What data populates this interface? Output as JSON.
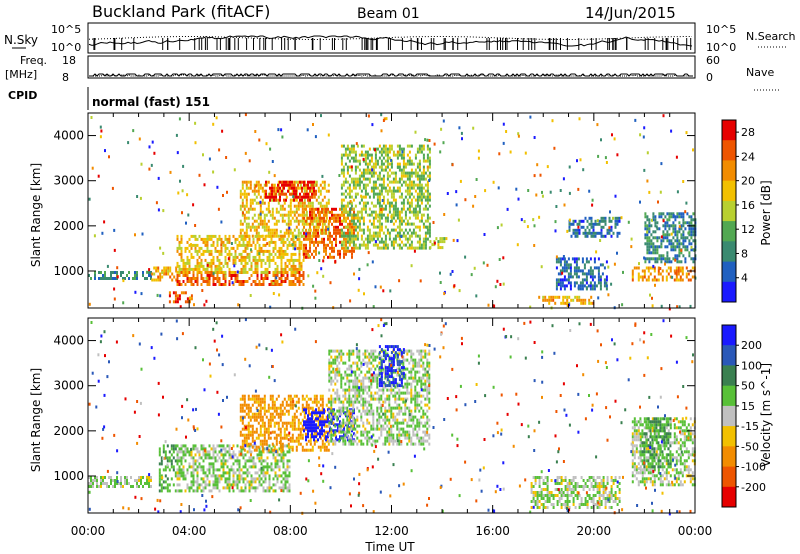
{
  "header": {
    "station": "Buckland Park (fitACF)",
    "beam": "Beam 01",
    "date": "14/Jun/2015"
  },
  "aux": {
    "nsky_label": "N.Sky",
    "nsearch_label": "N.Search",
    "noise_ticks": [
      "10^5",
      "10^0"
    ],
    "freq_label": "Freq.",
    "freq_unit": "[MHz]",
    "freq_ticks": [
      "18",
      "8"
    ],
    "nave_label": "Nave",
    "nave_ticks": [
      "60",
      "0"
    ],
    "cpid_label": "CPID",
    "cpid_value": "normal (fast) 151"
  },
  "chart_data": [
    {
      "type": "heatmap",
      "title": "",
      "xlabel": "Time UT",
      "ylabel": "Slant Range [km]",
      "x_ticks": [
        "00:00",
        "04:00",
        "08:00",
        "12:00",
        "16:00",
        "20:00",
        "00:00"
      ],
      "xlim_hours": [
        0,
        24
      ],
      "y_ticks": [
        1000,
        2000,
        3000,
        4000
      ],
      "ylim": [
        180,
        4500
      ],
      "colorbar": {
        "label": "Power [dB]",
        "ticks": [
          4,
          8,
          12,
          16,
          20,
          24,
          28
        ],
        "range": [
          0,
          30
        ],
        "colors": [
          "#1a1aff",
          "#2060c0",
          "#3a8a70",
          "#52a852",
          "#b8d030",
          "#f2c000",
          "#f28c00",
          "#ee5500",
          "#e60000"
        ]
      },
      "regions": [
        {
          "t0": 0.0,
          "t1": 2.5,
          "r0": 850,
          "r1": 1000,
          "value": 8
        },
        {
          "t0": 2.5,
          "t1": 3.5,
          "r0": 800,
          "r1": 1100,
          "value": 20
        },
        {
          "t0": 3.2,
          "t1": 4.3,
          "r0": 350,
          "r1": 550,
          "value": 26
        },
        {
          "t0": 3.5,
          "t1": 8.5,
          "r0": 700,
          "r1": 1000,
          "value": 24
        },
        {
          "t0": 3.5,
          "t1": 8.5,
          "r0": 1000,
          "r1": 1800,
          "value": 18
        },
        {
          "t0": 6.0,
          "t1": 9.5,
          "r0": 1800,
          "r1": 3000,
          "value": 18
        },
        {
          "t0": 7.0,
          "t1": 9.0,
          "r0": 2600,
          "r1": 3000,
          "value": 27
        },
        {
          "t0": 8.5,
          "t1": 10.5,
          "r0": 1300,
          "r1": 2400,
          "value": 24
        },
        {
          "t0": 10.0,
          "t1": 13.5,
          "r0": 1500,
          "r1": 3800,
          "value": 14
        },
        {
          "t0": 13.5,
          "t1": 14.2,
          "r0": 1550,
          "r1": 1750,
          "value": 16
        },
        {
          "t0": 17.8,
          "t1": 20.0,
          "r0": 300,
          "r1": 450,
          "value": 20
        },
        {
          "t0": 18.5,
          "t1": 20.5,
          "r0": 600,
          "r1": 1300,
          "value": 6
        },
        {
          "t0": 19.0,
          "t1": 21.0,
          "r0": 1800,
          "r1": 2200,
          "value": 6
        },
        {
          "t0": 21.5,
          "t1": 24.0,
          "r0": 800,
          "r1": 1100,
          "value": 22
        },
        {
          "t0": 22.0,
          "t1": 24.0,
          "r0": 1200,
          "r1": 2300,
          "value": 8
        }
      ]
    },
    {
      "type": "heatmap",
      "title": "",
      "xlabel": "Time UT",
      "ylabel": "Slant Range [km]",
      "x_ticks": [
        "00:00",
        "04:00",
        "08:00",
        "12:00",
        "16:00",
        "20:00",
        "00:00"
      ],
      "xlim_hours": [
        0,
        24
      ],
      "y_ticks": [
        1000,
        2000,
        3000,
        4000
      ],
      "ylim": [
        180,
        4500
      ],
      "colorbar": {
        "label": "Velocity [m s^-1]",
        "ticks": [
          "200",
          "100",
          "50",
          "15",
          "-15",
          "-50",
          "-100",
          "-200"
        ],
        "colors": [
          "#1a1aff",
          "#2a58b8",
          "#3a8050",
          "#58c038",
          "#c0c0c0",
          "#f2c000",
          "#f28c00",
          "#ee5500",
          "#e60000"
        ]
      },
      "regions": [
        {
          "t0": 0.0,
          "t1": 2.5,
          "r0": 800,
          "r1": 1000,
          "value": 0
        },
        {
          "t0": 2.8,
          "t1": 3.5,
          "r0": 700,
          "r1": 1700,
          "value": 30
        },
        {
          "t0": 3.5,
          "t1": 8.0,
          "r0": 700,
          "r1": 1700,
          "value": 0
        },
        {
          "t0": 6.0,
          "t1": 9.5,
          "r0": 1600,
          "r1": 2800,
          "value": -40
        },
        {
          "t0": 8.5,
          "t1": 10.5,
          "r0": 1800,
          "r1": 2500,
          "value": 180
        },
        {
          "t0": 9.5,
          "t1": 13.5,
          "r0": 1700,
          "r1": 3800,
          "value": 0
        },
        {
          "t0": 11.5,
          "t1": 12.5,
          "r0": 3000,
          "r1": 3900,
          "value": 150
        },
        {
          "t0": 17.5,
          "t1": 21.0,
          "r0": 300,
          "r1": 1000,
          "value": 0
        },
        {
          "t0": 21.5,
          "t1": 24.0,
          "r0": 800,
          "r1": 2300,
          "value": 0
        },
        {
          "t0": 21.8,
          "t1": 23.0,
          "r0": 1200,
          "r1": 2300,
          "value": 30
        }
      ]
    }
  ]
}
